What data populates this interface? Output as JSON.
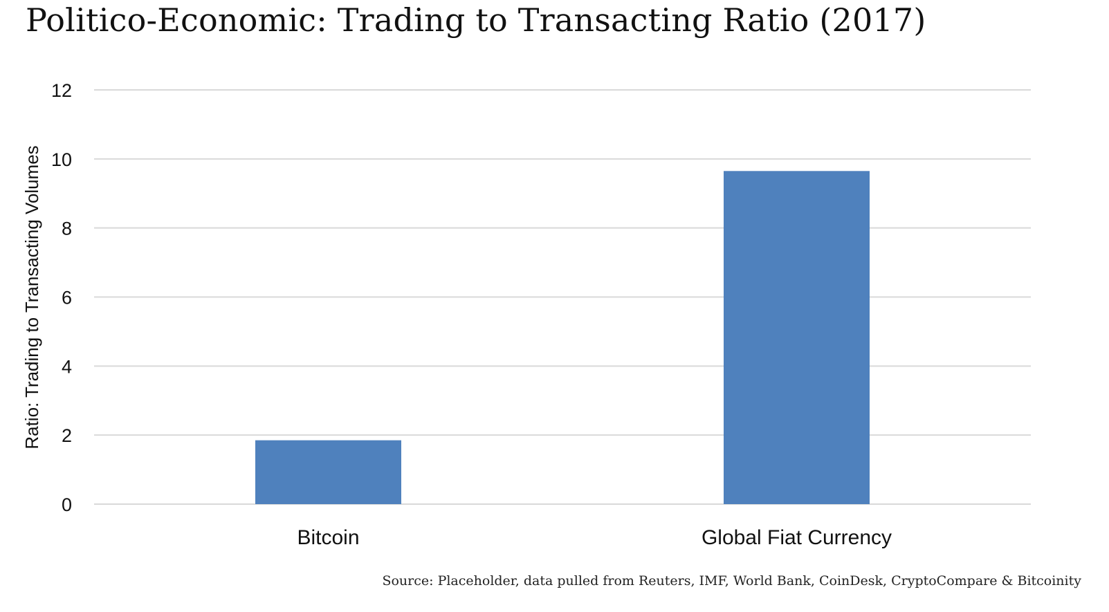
{
  "header": {
    "title": "Politico-Economic: Trading to Transacting Ratio (2017)"
  },
  "footer": {
    "source": "Source: Placeholder, data pulled from Reuters, IMF, World Bank, CoinDesk, CryptoCompare & Bitcoinity"
  },
  "chart_data": {
    "type": "bar",
    "title": "Politico-Economic: Trading to Transacting Ratio (2017)",
    "xlabel": "",
    "ylabel": "Ratio: Trading to Transacting Volumes",
    "categories": [
      "Bitcoin",
      "Global Fiat Currency"
    ],
    "values": [
      1.85,
      9.65
    ],
    "ylim": [
      0,
      12
    ],
    "yticks": [
      "0",
      "2",
      "4",
      "6",
      "8",
      "10",
      "12"
    ],
    "grid": true,
    "legend": "none",
    "bar_color": "#4f81bd",
    "grid_color": "#d9d9d9"
  }
}
